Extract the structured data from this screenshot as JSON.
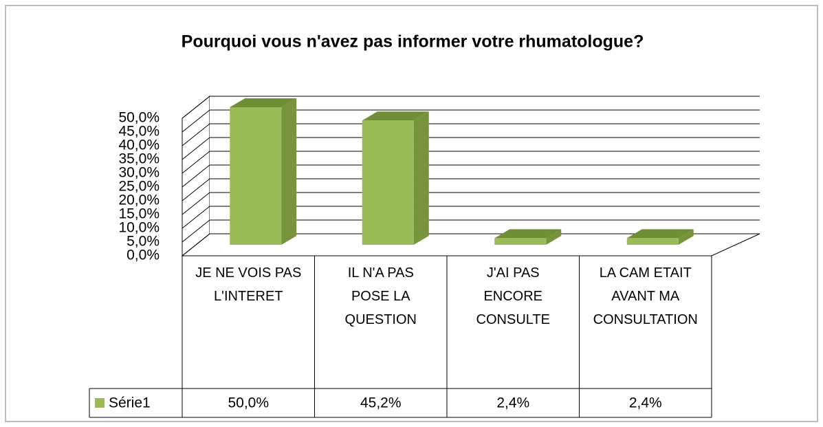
{
  "chart_data": {
    "type": "bar3d",
    "title": "Pourquoi vous n'avez pas informer votre rhumatologue?",
    "categories": [
      "JE NE VOIS PAS L'INTERET",
      "IL N'A PAS POSE LA QUESTION",
      "J'AI PAS ENCORE CONSULTE",
      "LA CAM ETAIT AVANT MA CONSULTATION"
    ],
    "series": [
      {
        "name": "Série1",
        "color": "#9bbb59",
        "values": [
          50,
          45.2,
          2.4,
          2.4
        ],
        "value_labels": [
          "50,0%",
          "45,2%",
          "2,4%",
          "2,4%"
        ]
      }
    ],
    "ylim": [
      0,
      50
    ],
    "yticks": [
      {
        "value": 0,
        "label": "0,0%"
      },
      {
        "value": 5,
        "label": "5,0%"
      },
      {
        "value": 10,
        "label": "10,0%"
      },
      {
        "value": 15,
        "label": "15,0%"
      },
      {
        "value": 20,
        "label": "20,0%"
      },
      {
        "value": 25,
        "label": "25,0%"
      },
      {
        "value": 30,
        "label": "30,0%"
      },
      {
        "value": 35,
        "label": "35,0%"
      },
      {
        "value": 40,
        "label": "40,0%"
      },
      {
        "value": 45,
        "label": "45,0%"
      },
      {
        "value": 50,
        "label": "50,0%"
      }
    ],
    "grid": true,
    "data_table": true
  }
}
